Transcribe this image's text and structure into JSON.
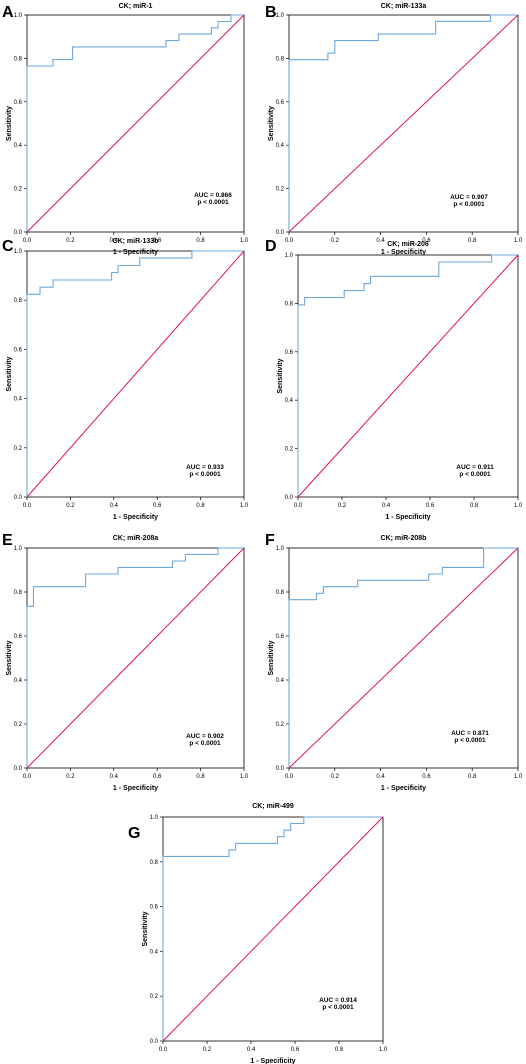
{
  "chart_data": [
    {
      "panel_letter": "A",
      "type": "line",
      "title": "CK; miR-1",
      "xlabel": "1 - Specificity",
      "ylabel": "Sensitivity",
      "xlim": [
        0,
        1
      ],
      "ylim": [
        0,
        1
      ],
      "xticks": [
        "0.0",
        "0.2",
        "0.4",
        "0.6",
        "0.8",
        "1.0"
      ],
      "yticks": [
        "0.0",
        "0.2",
        "0.4",
        "0.6",
        "0.8",
        "1.0"
      ],
      "annotation_lines": [
        "AUC = 0.866",
        "p < 0.0001"
      ],
      "series": [
        {
          "color": "#6fa8dc",
          "x": [
            0,
            0,
            0.12,
            0.12,
            0.21,
            0.21,
            0.64,
            0.64,
            0.7,
            0.7,
            0.85,
            0.85,
            0.88,
            0.88,
            0.92,
            0.92,
            0.94,
            0.94,
            1.0
          ],
          "y": [
            0,
            0.765,
            0.765,
            0.795,
            0.795,
            0.853,
            0.853,
            0.882,
            0.882,
            0.912,
            0.912,
            0.941,
            0.941,
            0.97,
            0.97,
            0.97,
            0.97,
            1.0,
            1.0
          ]
        },
        {
          "color": "#e0115f",
          "x": [
            0,
            1
          ],
          "y": [
            0,
            1
          ]
        }
      ]
    },
    {
      "panel_letter": "B",
      "type": "line",
      "title": "CK; miR-133a",
      "xlabel": "1 - Specificity",
      "ylabel": "Sensitivity",
      "xlim": [
        0,
        1
      ],
      "ylim": [
        0,
        1
      ],
      "xticks": [
        "0.0",
        "0.2",
        "0.4",
        "0.6",
        "0.8",
        "1.0"
      ],
      "yticks": [
        "0.0",
        "0.2",
        "0.4",
        "0.6",
        "0.8",
        "1.0"
      ],
      "annotation_lines": [
        "AUC = 0.907",
        "p < 0.0001"
      ],
      "series": [
        {
          "color": "#6fa8dc",
          "x": [
            0,
            0,
            0.17,
            0.17,
            0.2,
            0.2,
            0.39,
            0.39,
            0.64,
            0.64,
            0.88,
            0.88,
            1.0
          ],
          "y": [
            0,
            0.794,
            0.794,
            0.824,
            0.824,
            0.882,
            0.882,
            0.912,
            0.912,
            0.971,
            0.971,
            1.0,
            1.0
          ]
        },
        {
          "color": "#e0115f",
          "x": [
            0,
            1
          ],
          "y": [
            0,
            1
          ]
        }
      ]
    },
    {
      "panel_letter": "C",
      "type": "line",
      "title": "CK; miR-133b",
      "xlabel": "1 - Specificity",
      "ylabel": "Sensitivity",
      "xlim": [
        0,
        1
      ],
      "ylim": [
        0,
        1
      ],
      "xticks": [
        "0.0",
        "0.2",
        "0.4",
        "0.6",
        "0.8",
        "1.0"
      ],
      "yticks": [
        "0.0",
        "0.2",
        "0.4",
        "0.6",
        "0.8",
        "1.0"
      ],
      "annotation_lines": [
        "AUC = 0.933",
        "p < 0.0001"
      ],
      "series": [
        {
          "color": "#6fa8dc",
          "x": [
            0,
            0,
            0.06,
            0.06,
            0.12,
            0.12,
            0.39,
            0.39,
            0.42,
            0.42,
            0.52,
            0.52,
            0.76,
            0.76,
            1.0
          ],
          "y": [
            0,
            0.824,
            0.824,
            0.853,
            0.853,
            0.882,
            0.882,
            0.912,
            0.912,
            0.941,
            0.941,
            0.971,
            0.971,
            1.0,
            1.0
          ]
        },
        {
          "color": "#e0115f",
          "x": [
            0,
            1
          ],
          "y": [
            0,
            1
          ]
        }
      ]
    },
    {
      "panel_letter": "D",
      "type": "line",
      "title": "CK; miR-206",
      "xlabel": "1 - Specificity",
      "ylabel": "Sensitivity",
      "xlim": [
        0,
        1
      ],
      "ylim": [
        0,
        1
      ],
      "xticks": [
        "0.0",
        "0.2",
        "0.4",
        "0.6",
        "0.8",
        "1.0"
      ],
      "yticks": [
        "0.0",
        "0.2",
        "0.4",
        "0.6",
        "0.8",
        "1.0"
      ],
      "annotation_lines": [
        "AUC = 0.911",
        "p < 0.0001"
      ],
      "series": [
        {
          "color": "#6fa8dc",
          "x": [
            0,
            0,
            0.03,
            0.03,
            0.21,
            0.21,
            0.3,
            0.3,
            0.33,
            0.33,
            0.64,
            0.64,
            0.88,
            0.88,
            1.0
          ],
          "y": [
            0,
            0.794,
            0.794,
            0.824,
            0.824,
            0.853,
            0.853,
            0.882,
            0.882,
            0.912,
            0.912,
            0.971,
            0.971,
            1.0,
            1.0
          ]
        },
        {
          "color": "#e0115f",
          "x": [
            0,
            1
          ],
          "y": [
            0,
            1
          ]
        }
      ]
    },
    {
      "panel_letter": "E",
      "type": "line",
      "title": "CK; miR-208a",
      "xlabel": "1 - Specificity",
      "ylabel": "Sensitivity",
      "xlim": [
        0,
        1
      ],
      "ylim": [
        0,
        1
      ],
      "xticks": [
        "0.0",
        "0.2",
        "0.4",
        "0.6",
        "0.8",
        "1.0"
      ],
      "yticks": [
        "0.0",
        "0.2",
        "0.4",
        "0.6",
        "0.8",
        "1.0"
      ],
      "annotation_lines": [
        "AUC = 0.902",
        "p < 0.0001"
      ],
      "series": [
        {
          "color": "#6fa8dc",
          "x": [
            0,
            0,
            0.03,
            0.03,
            0.27,
            0.27,
            0.42,
            0.42,
            0.67,
            0.67,
            0.73,
            0.73,
            0.88,
            0.88,
            1.0
          ],
          "y": [
            0,
            0.735,
            0.735,
            0.824,
            0.824,
            0.882,
            0.882,
            0.912,
            0.912,
            0.941,
            0.941,
            0.971,
            0.971,
            1.0,
            1.0
          ]
        },
        {
          "color": "#e0115f",
          "x": [
            0,
            1
          ],
          "y": [
            0,
            1
          ]
        }
      ]
    },
    {
      "panel_letter": "F",
      "type": "line",
      "title": "CK; miR-208b",
      "xlabel": "1 - Specificity",
      "ylabel": "Sensitivity",
      "xlim": [
        0,
        1
      ],
      "ylim": [
        0,
        1
      ],
      "xticks": [
        "0.0",
        "0.2",
        "0.4",
        "0.6",
        "0.8",
        "1.0"
      ],
      "yticks": [
        "0.0",
        "0.2",
        "0.4",
        "0.6",
        "0.8",
        "1.0"
      ],
      "annotation_lines": [
        "AUC = 0.871",
        "p < 0.0001"
      ],
      "series": [
        {
          "color": "#6fa8dc",
          "x": [
            0,
            0,
            0.12,
            0.12,
            0.15,
            0.15,
            0.3,
            0.3,
            0.61,
            0.61,
            0.67,
            0.67,
            0.85,
            0.85,
            1.0
          ],
          "y": [
            0,
            0.765,
            0.765,
            0.794,
            0.794,
            0.824,
            0.824,
            0.853,
            0.853,
            0.882,
            0.882,
            0.912,
            0.912,
            1.0,
            1.0
          ]
        },
        {
          "color": "#e0115f",
          "x": [
            0,
            1
          ],
          "y": [
            0,
            1
          ]
        }
      ]
    },
    {
      "panel_letter": "G",
      "type": "line",
      "title": "CK; miR-499",
      "xlabel": "1 - Specificity",
      "ylabel": "Sensitivity",
      "xlim": [
        0,
        1
      ],
      "ylim": [
        0,
        1
      ],
      "xticks": [
        "0.0",
        "0.2",
        "0.4",
        "0.6",
        "0.8",
        "1.0"
      ],
      "yticks": [
        "0.0",
        "0.2",
        "0.4",
        "0.6",
        "0.8",
        "1.0"
      ],
      "annotation_lines": [
        "AUC = 0.914",
        "p < 0.0001"
      ],
      "series": [
        {
          "color": "#6fa8dc",
          "x": [
            0,
            0,
            0.3,
            0.3,
            0.33,
            0.33,
            0.52,
            0.52,
            0.55,
            0.55,
            0.58,
            0.58,
            0.64,
            0.64,
            1.0
          ],
          "y": [
            0,
            0.824,
            0.824,
            0.853,
            0.853,
            0.882,
            0.882,
            0.912,
            0.912,
            0.941,
            0.941,
            0.971,
            0.971,
            1.0,
            1.0
          ]
        },
        {
          "color": "#e0115f",
          "x": [
            0,
            1
          ],
          "y": [
            0,
            1
          ]
        }
      ]
    }
  ]
}
